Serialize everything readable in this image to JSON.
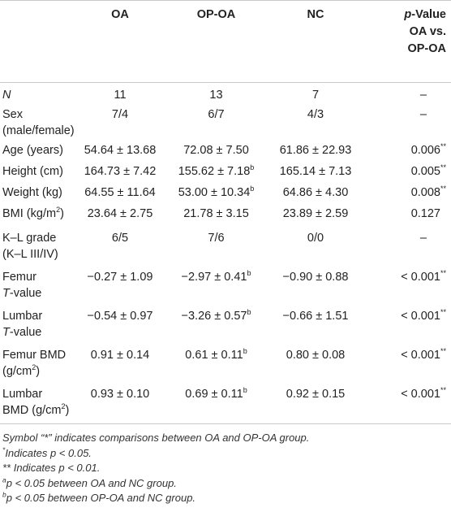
{
  "headers": {
    "label": "",
    "oa": "OA",
    "opoa": "OP-OA",
    "nc": "NC",
    "p_line1_italic": "p",
    "p_line1_rest": "-Value",
    "p_line2": "OA vs.",
    "p_line3": "OP-OA"
  },
  "rows": {
    "n": {
      "label": "N",
      "oa": "11",
      "opoa": "13",
      "nc": "7",
      "p": "–"
    },
    "sex": {
      "label_l1": "Sex",
      "label_l2": "(male/female)",
      "oa": "7/4",
      "opoa": "6/7",
      "nc": "4/3",
      "p": "–"
    },
    "age": {
      "label": "Age (years)",
      "oa": "54.64 ± 13.68",
      "opoa": "72.08 ± 7.50",
      "nc": "61.86 ± 22.93",
      "p": "0.006",
      "p_sup": "**"
    },
    "height": {
      "label": "Height (cm)",
      "oa": "164.73 ± 7.42",
      "opoa": "155.62 ± 7.18",
      "opoa_sup": "b",
      "nc": "165.14 ± 7.13",
      "p": "0.005",
      "p_sup": "**"
    },
    "weight": {
      "label": "Weight (kg)",
      "oa": "64.55 ± 11.64",
      "opoa": "53.00 ± 10.34",
      "opoa_sup": "b",
      "nc": "64.86 ± 4.30",
      "p": "0.008",
      "p_sup": "**"
    },
    "bmi": {
      "label": "BMI (kg/m",
      "label_sup": "2",
      "label_end": ")",
      "oa": "23.64 ± 2.75",
      "opoa": "21.78 ± 3.15",
      "nc": "23.89 ± 2.59",
      "p": "0.127"
    },
    "kl": {
      "label_l1": "K–L grade",
      "label_l2": "(K–L III/IV)",
      "oa": "6/5",
      "opoa": "7/6",
      "nc": "0/0",
      "p": "–"
    },
    "femur_t": {
      "label_l1": "Femur",
      "label_l2_italic": "T",
      "label_l2_rest": "-value",
      "oa": "−0.27 ± 1.09",
      "opoa": "−2.97 ± 0.41",
      "opoa_sup": "b",
      "nc": "−0.90 ± 0.88",
      "p": "< 0.001",
      "p_sup": "**"
    },
    "lumbar_t": {
      "label_l1": "Lumbar",
      "label_l2_italic": "T",
      "label_l2_rest": "-value",
      "oa": "−0.54 ± 0.97",
      "opoa": "−3.26 ± 0.57",
      "opoa_sup": "b",
      "nc": "−0.66 ± 1.51",
      "p": "< 0.001",
      "p_sup": "**"
    },
    "femur_bmd": {
      "label_l1": "Femur BMD",
      "label_l2": "(g/cm",
      "label_l2_sup": "2",
      "label_l2_end": ")",
      "oa": "0.91 ± 0.14",
      "opoa": "0.61 ± 0.11",
      "opoa_sup": "b",
      "nc": "0.80 ± 0.08",
      "p": "< 0.001",
      "p_sup": "**"
    },
    "lumbar_bmd": {
      "label_l1": "Lumbar",
      "label_l2": "BMD (g/cm",
      "label_l2_sup": "2",
      "label_l2_end": ")",
      "oa": "0.93 ± 0.10",
      "opoa": "0.69 ± 0.11",
      "opoa_sup": "b",
      "nc": "0.92 ± 0.15",
      "p": "< 0.001",
      "p_sup": "**"
    }
  },
  "notes": {
    "n1": "Symbol “*” indicates comparisons between OA and OP-OA group.",
    "n2_sup": "*",
    "n2": "Indicates p < 0.05.",
    "n3": "** Indicates p < 0.01.",
    "n4_sup": "a",
    "n4": "p < 0.05 between OA and NC group.",
    "n5_sup": "b",
    "n5": "p < 0.05 between OP-OA and NC group."
  }
}
